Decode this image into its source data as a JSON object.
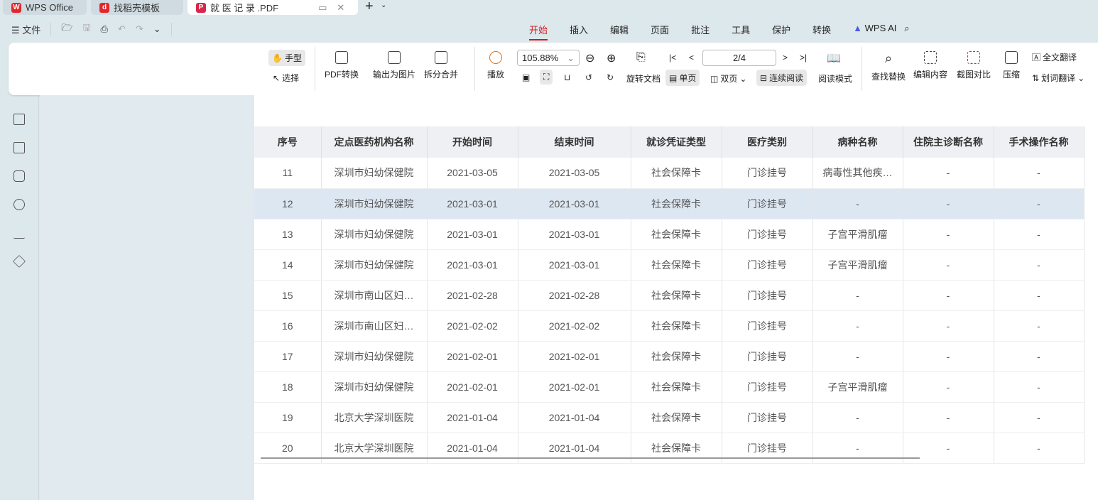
{
  "tabs": [
    {
      "label": "WPS Office"
    },
    {
      "label": "找稻壳模板"
    },
    {
      "label": "就 医 记 录 .PDF"
    }
  ],
  "quick_access": {
    "file": "文件"
  },
  "menu": [
    "开始",
    "插入",
    "编辑",
    "页面",
    "批注",
    "工具",
    "保护",
    "转换",
    "WPS AI"
  ],
  "ribbon": {
    "hand": "手型",
    "select": "选择",
    "pdf_convert": "PDF转换",
    "export_image": "输出为图片",
    "split_merge": "拆分合并",
    "play": "播放",
    "zoom": "105.88%",
    "page": "2/4",
    "rotate": "旋转文档",
    "single": "单页",
    "double": "双页",
    "continuous": "连续阅读",
    "read_mode": "阅读模式",
    "find_replace": "查找替换",
    "edit_content": "编辑内容",
    "screenshot_compare": "截图对比",
    "compress": "压缩",
    "full_translate": "全文翻译",
    "word_translate": "划词翻译"
  },
  "table": {
    "headers": [
      "序号",
      "定点医药机构名称",
      "开始时间",
      "结束时间",
      "就诊凭证类型",
      "医疗类别",
      "病种名称",
      "住院主诊断名称",
      "手术操作名称"
    ],
    "rows": [
      [
        "11",
        "深圳市妇幼保健院",
        "2021-03-05",
        "2021-03-05",
        "社会保障卡",
        "门诊挂号",
        "病毒性其他疾…",
        "-",
        "-"
      ],
      [
        "12",
        "深圳市妇幼保健院",
        "2021-03-01",
        "2021-03-01",
        "社会保障卡",
        "门诊挂号",
        "-",
        "-",
        "-"
      ],
      [
        "13",
        "深圳市妇幼保健院",
        "2021-03-01",
        "2021-03-01",
        "社会保障卡",
        "门诊挂号",
        "子宫平滑肌瘤",
        "-",
        "-"
      ],
      [
        "14",
        "深圳市妇幼保健院",
        "2021-03-01",
        "2021-03-01",
        "社会保障卡",
        "门诊挂号",
        "子宫平滑肌瘤",
        "-",
        "-"
      ],
      [
        "15",
        "深圳市南山区妇…",
        "2021-02-28",
        "2021-02-28",
        "社会保障卡",
        "门诊挂号",
        "-",
        "-",
        "-"
      ],
      [
        "16",
        "深圳市南山区妇…",
        "2021-02-02",
        "2021-02-02",
        "社会保障卡",
        "门诊挂号",
        "-",
        "-",
        "-"
      ],
      [
        "17",
        "深圳市妇幼保健院",
        "2021-02-01",
        "2021-02-01",
        "社会保障卡",
        "门诊挂号",
        "-",
        "-",
        "-"
      ],
      [
        "18",
        "深圳市妇幼保健院",
        "2021-02-01",
        "2021-02-01",
        "社会保障卡",
        "门诊挂号",
        "子宫平滑肌瘤",
        "-",
        "-"
      ],
      [
        "19",
        "北京大学深圳医院",
        "2021-01-04",
        "2021-01-04",
        "社会保障卡",
        "门诊挂号",
        "-",
        "-",
        "-"
      ],
      [
        "20",
        "北京大学深圳医院",
        "2021-01-04",
        "2021-01-04",
        "社会保障卡",
        "门诊挂号",
        "-",
        "-",
        "-"
      ]
    ],
    "selected_row": 1
  },
  "colors": {
    "accent": "#d6171c",
    "selected_row": "#dde7f2"
  }
}
